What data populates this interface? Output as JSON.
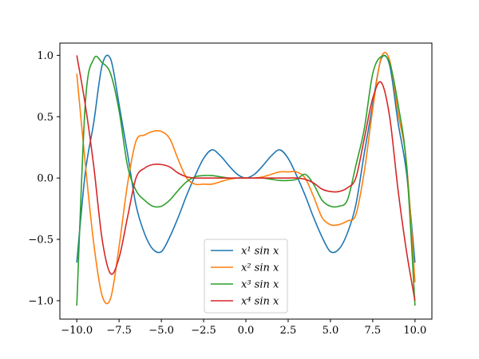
{
  "chart_data": {
    "type": "line",
    "title": "",
    "xlabel": "",
    "ylabel": "",
    "xlim": [
      -11,
      11
    ],
    "ylim": [
      -1.15,
      1.1
    ],
    "xticks": [
      -10.0,
      -7.5,
      -5.0,
      -2.5,
      0.0,
      2.5,
      5.0,
      7.5,
      10.0
    ],
    "xtick_labels": [
      "−10.0",
      "−7.5",
      "−5.0",
      "−2.5",
      "0.0",
      "2.5",
      "5.0",
      "7.5",
      "10.0"
    ],
    "yticks": [
      -1.0,
      -0.5,
      0.0,
      0.5,
      1.0
    ],
    "ytick_labels": [
      "−1.0",
      "−0.5",
      "0.0",
      "0.5",
      "1.0"
    ],
    "grid": false,
    "legend_position": "lower-center",
    "x": [
      -10,
      -9.5,
      -9,
      -8.5,
      -8,
      -7.5,
      -7,
      -6.5,
      -6,
      -5.5,
      -5,
      -4.5,
      -4,
      -3.5,
      -3,
      -2.5,
      -2,
      -1.5,
      -1,
      -0.5,
      0,
      0.5,
      1,
      1.5,
      2,
      2.5,
      3,
      3.5,
      4,
      4.5,
      5,
      5.5,
      6,
      6.5,
      7,
      7.5,
      8,
      8.5,
      9,
      9.5,
      10
    ],
    "series": [
      {
        "name": "x¹ sin x",
        "color": "#1f77b4",
        "values": [
          -0.69,
          0.04,
          0.45,
          0.92,
          0.97,
          0.6,
          0.2,
          -0.22,
          -0.45,
          -0.58,
          -0.6,
          -0.48,
          -0.32,
          -0.14,
          0.02,
          0.16,
          0.23,
          0.18,
          0.1,
          0.03,
          0.0,
          0.03,
          0.1,
          0.18,
          0.23,
          0.16,
          0.02,
          -0.14,
          -0.32,
          -0.48,
          -0.6,
          -0.58,
          -0.45,
          -0.22,
          0.2,
          0.6,
          0.97,
          0.92,
          0.45,
          0.04,
          -0.69
        ]
      },
      {
        "name": "x² sin x",
        "color": "#ff7f0e",
        "values": [
          0.85,
          0.12,
          -0.53,
          -0.96,
          -0.98,
          -0.56,
          -0.05,
          0.3,
          0.35,
          0.38,
          0.38,
          0.32,
          0.15,
          0.0,
          -0.05,
          -0.05,
          -0.05,
          -0.03,
          -0.01,
          0.0,
          0.0,
          0.0,
          0.01,
          0.03,
          0.05,
          0.05,
          0.05,
          0.0,
          -0.15,
          -0.32,
          -0.38,
          -0.38,
          -0.35,
          -0.3,
          0.05,
          0.56,
          0.98,
          0.96,
          0.53,
          0.12,
          -0.85
        ]
      },
      {
        "name": "x³ sin x",
        "color": "#2ca02c",
        "values": [
          -1.04,
          0.6,
          0.97,
          0.94,
          0.85,
          0.55,
          0.1,
          -0.1,
          -0.18,
          -0.23,
          -0.23,
          -0.18,
          -0.1,
          -0.03,
          0.01,
          0.02,
          0.02,
          0.01,
          0.0,
          0.0,
          0.0,
          0.0,
          0.0,
          -0.01,
          -0.02,
          -0.02,
          -0.01,
          0.03,
          -0.05,
          -0.18,
          -0.23,
          -0.23,
          -0.18,
          0.1,
          0.4,
          0.85,
          0.99,
          0.94,
          0.6,
          0.1,
          -1.04
        ]
      },
      {
        "name": "x⁴ sin x",
        "color": "#d62728",
        "values": [
          1.0,
          0.6,
          0.1,
          -0.5,
          -0.78,
          -0.65,
          -0.32,
          0.0,
          0.08,
          0.11,
          0.11,
          0.09,
          0.04,
          0.01,
          0.0,
          0.0,
          0.0,
          0.0,
          0.0,
          0.0,
          0.0,
          0.0,
          0.0,
          0.0,
          0.0,
          0.0,
          0.0,
          -0.01,
          -0.04,
          -0.09,
          -0.11,
          -0.11,
          -0.08,
          0.0,
          0.32,
          0.65,
          0.78,
          0.5,
          -0.1,
          -0.6,
          -1.0
        ]
      }
    ]
  }
}
